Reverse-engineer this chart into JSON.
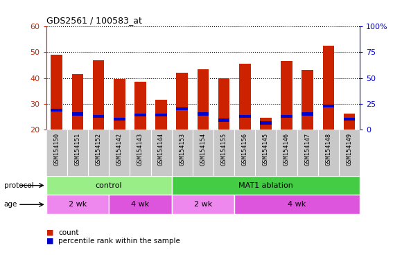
{
  "title": "GDS2561 / 100583_at",
  "samples": [
    "GSM154150",
    "GSM154151",
    "GSM154152",
    "GSM154142",
    "GSM154143",
    "GSM154144",
    "GSM154153",
    "GSM154154",
    "GSM154155",
    "GSM154156",
    "GSM154145",
    "GSM154146",
    "GSM154147",
    "GSM154148",
    "GSM154149"
  ],
  "count_values": [
    49.0,
    41.5,
    47.0,
    39.5,
    38.5,
    31.5,
    42.0,
    43.5,
    40.0,
    45.5,
    24.5,
    46.5,
    43.0,
    52.5,
    26.0
  ],
  "percentile_values": [
    27.5,
    26.0,
    25.0,
    24.0,
    25.5,
    25.5,
    28.0,
    26.0,
    23.5,
    25.0,
    22.5,
    25.0,
    26.0,
    29.0,
    24.0
  ],
  "bar_bottom": 20,
  "ylim_left": [
    20,
    60
  ],
  "ylim_right": [
    0,
    100
  ],
  "yticks_left": [
    20,
    30,
    40,
    50,
    60
  ],
  "yticks_right": [
    0,
    25,
    50,
    75,
    100
  ],
  "ytick_labels_right": [
    "0",
    "25",
    "50",
    "75",
    "100%"
  ],
  "left_tick_color": "#cc2200",
  "right_tick_color": "#0000cc",
  "bar_color": "#cc2200",
  "percentile_color": "#0000cc",
  "sample_label_bg": "#c8c8c8",
  "plot_bg": "#ffffff",
  "protocol_groups": [
    {
      "label": "control",
      "start": 0,
      "end": 6,
      "color": "#99ee88"
    },
    {
      "label": "MAT1 ablation",
      "start": 6,
      "end": 15,
      "color": "#44cc44"
    }
  ],
  "age_groups": [
    {
      "label": "2 wk",
      "start": 0,
      "end": 3,
      "color": "#ee88ee"
    },
    {
      "label": "4 wk",
      "start": 3,
      "end": 6,
      "color": "#dd55dd"
    },
    {
      "label": "2 wk",
      "start": 6,
      "end": 9,
      "color": "#ee88ee"
    },
    {
      "label": "4 wk",
      "start": 9,
      "end": 15,
      "color": "#dd55dd"
    }
  ],
  "legend_items": [
    {
      "label": "count",
      "color": "#cc2200"
    },
    {
      "label": "percentile rank within the sample",
      "color": "#0000cc"
    }
  ],
  "bar_width": 0.55,
  "grid_color": "#000000",
  "percentile_bar_height": 1.2
}
